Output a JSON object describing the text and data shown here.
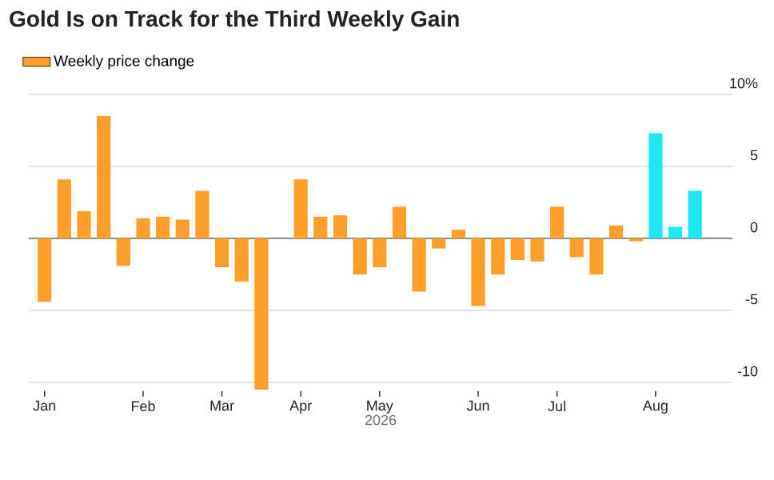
{
  "chart_data": {
    "type": "bar",
    "title": "Gold Is on Track for the Third Weekly Gain",
    "xlabel": "2026",
    "categories": [
      "Jan",
      null,
      null,
      null,
      null,
      "Feb",
      null,
      null,
      null,
      "Mar",
      null,
      null,
      null,
      "Apr",
      null,
      null,
      null,
      "May",
      null,
      null,
      null,
      null,
      "Jun",
      null,
      null,
      null,
      "Jul",
      null,
      null,
      null,
      null,
      "Aug",
      null,
      null
    ],
    "series": [
      {
        "name": "Weekly price change",
        "color": "#ff9f2a",
        "values": [
          -4.4,
          4.1,
          1.9,
          8.5,
          -1.9,
          1.4,
          1.5,
          1.3,
          3.3,
          -2.0,
          -3.0,
          -10.5,
          0,
          4.1,
          1.5,
          1.6,
          -2.5,
          -2.0,
          2.2,
          -3.7,
          -0.7,
          0.6,
          -4.7,
          -2.5,
          -1.5,
          -1.6,
          2.2,
          -1.3,
          -2.5,
          0.9,
          -0.2,
          7.3,
          0.8,
          3.3
        ],
        "colors": [
          "#ff9f2a",
          "#ff9f2a",
          "#ff9f2a",
          "#ff9f2a",
          "#ff9f2a",
          "#ff9f2a",
          "#ff9f2a",
          "#ff9f2a",
          "#ff9f2a",
          "#ff9f2a",
          "#ff9f2a",
          "#ff9f2a",
          "#ff9f2a",
          "#ff9f2a",
          "#ff9f2a",
          "#ff9f2a",
          "#ff9f2a",
          "#ff9f2a",
          "#ff9f2a",
          "#ff9f2a",
          "#ff9f2a",
          "#ff9f2a",
          "#ff9f2a",
          "#ff9f2a",
          "#ff9f2a",
          "#ff9f2a",
          "#ff9f2a",
          "#ff9f2a",
          "#ff9f2a",
          "#ff9f2a",
          "#ff9f2a",
          "#1de9f6",
          "#1de9f6",
          "#1de9f6"
        ]
      }
    ],
    "ylim": [
      -10.6,
      10
    ],
    "yticks": [
      {
        "value": 10,
        "label": "10%"
      },
      5,
      0,
      -5,
      -10
    ],
    "grid": "y",
    "legend": "top left"
  }
}
